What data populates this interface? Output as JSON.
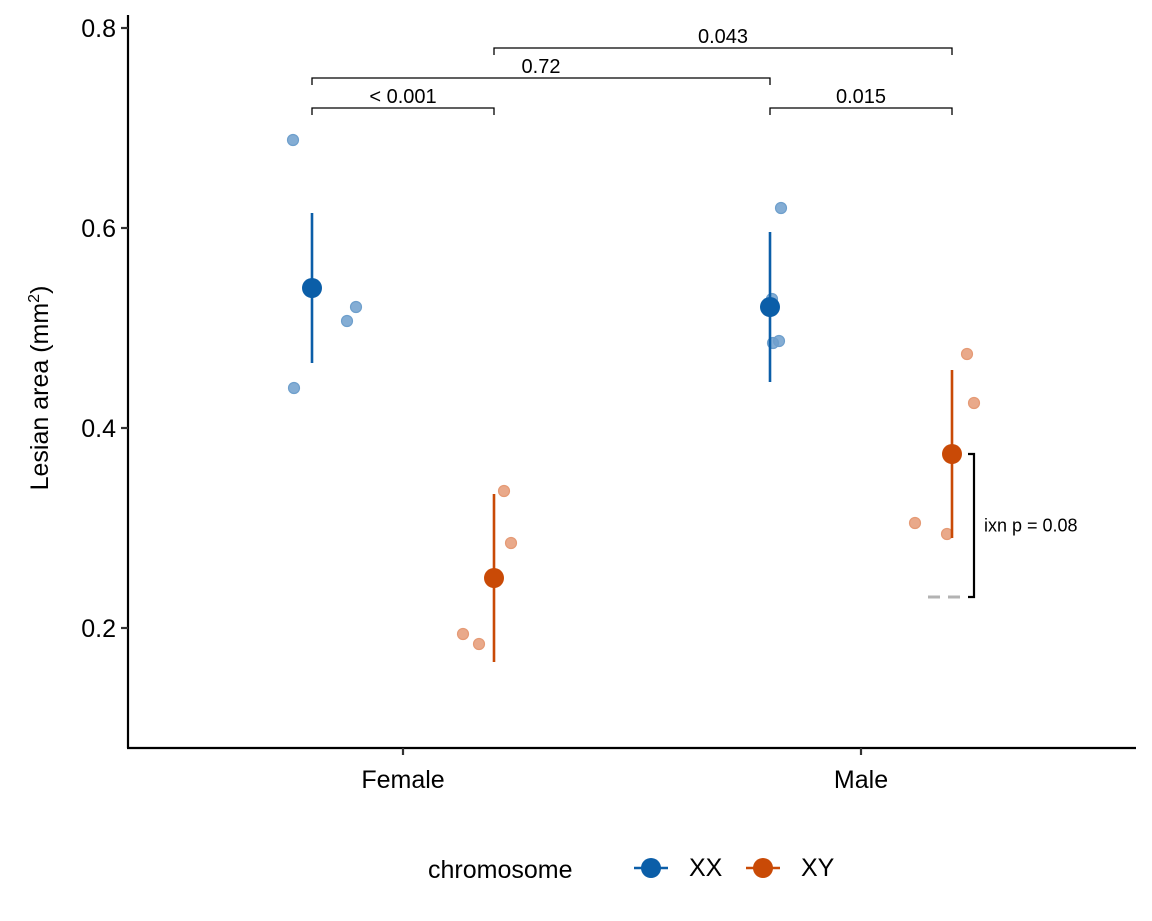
{
  "chart_data": {
    "type": "scatter",
    "subtype": "dot-and-errorbar with jittered points",
    "title": "",
    "xlabel": "",
    "ylabel": "Lesian area (mm",
    "ylabel_superscript": "2",
    "ylabel_suffix": ")",
    "ylim": [
      0.08,
      0.813
    ],
    "yticks": [
      0.2,
      0.4,
      0.6,
      0.8
    ],
    "ytick_labels": [
      "0.2",
      "0.4",
      "0.6",
      "0.8"
    ],
    "categories": [
      "Female",
      "Male"
    ],
    "grid": false,
    "legend": {
      "title": "chromosome",
      "position": "bottom",
      "entries": [
        {
          "label": "XX",
          "color": "#0b5ea8"
        },
        {
          "label": "XY",
          "color": "#c94a06"
        }
      ]
    },
    "series": [
      {
        "name": "XX",
        "color": "#0b5ea8",
        "point_color": "#6e9fcc",
        "groups": [
          {
            "category": "Female",
            "mean": 0.54,
            "lower": 0.465,
            "upper": 0.615,
            "points": [
              0.688,
              0.521,
              0.507,
              0.44
            ],
            "jitter": [
              -0.19,
              0.44,
              0.35,
              -0.18
            ]
          },
          {
            "category": "Male",
            "mean": 0.521,
            "lower": 0.446,
            "upper": 0.596,
            "points": [
              0.62,
              0.529,
              0.487,
              0.485
            ],
            "jitter": [
              0.11,
              0.02,
              0.09,
              0.03
            ]
          }
        ]
      },
      {
        "name": "XY",
        "color": "#c94a06",
        "point_color": "#e59a75",
        "groups": [
          {
            "category": "Female",
            "mean": 0.25,
            "lower": 0.166,
            "upper": 0.334,
            "points": [
              0.337,
              0.285,
              0.194,
              0.184
            ],
            "jitter": [
              0.1,
              0.17,
              -0.31,
              -0.15
            ]
          },
          {
            "category": "Male",
            "mean": 0.374,
            "lower": 0.29,
            "upper": 0.458,
            "points": [
              0.474,
              0.425,
              0.305,
              0.294
            ],
            "jitter": [
              0.15,
              0.22,
              -0.37,
              -0.05
            ]
          }
        ]
      }
    ],
    "comparisons": [
      {
        "label": "< 0.001",
        "from": [
          "Female",
          "XX"
        ],
        "to": [
          "Female",
          "XY"
        ],
        "y": 0.72
      },
      {
        "label": "0.015",
        "from": [
          "Male",
          "XX"
        ],
        "to": [
          "Male",
          "XY"
        ],
        "y": 0.72
      },
      {
        "label": "0.72",
        "from": [
          "Female",
          "XX"
        ],
        "to": [
          "Male",
          "XX"
        ],
        "y": 0.75
      },
      {
        "label": "0.043",
        "from": [
          "Female",
          "XY"
        ],
        "to": [
          "Male",
          "XY"
        ],
        "y": 0.78
      }
    ],
    "interaction": {
      "label": "ixn p = 0.08",
      "reference_value": 0.231,
      "target_value": 0.374,
      "category": "Male",
      "reference_color": "#b3b3b3"
    }
  }
}
